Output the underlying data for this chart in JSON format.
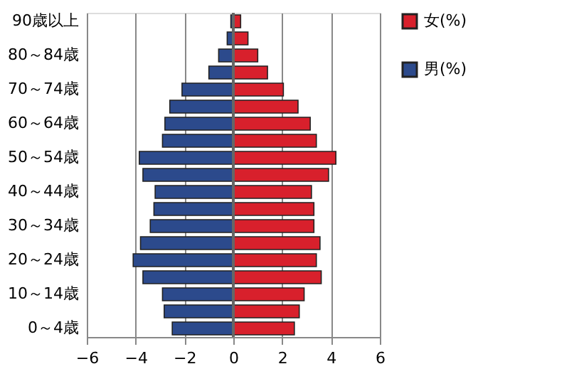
{
  "chart_data": {
    "type": "bar",
    "orientation": "horizontal",
    "categories": [
      "90歳以上",
      null,
      "80～84歳",
      null,
      "70～74歳",
      null,
      "60～64歳",
      null,
      "50～54歳",
      null,
      "40～44歳",
      null,
      "30～34歳",
      null,
      "20～24歳",
      null,
      "10～14歳",
      null,
      "0～4歳"
    ],
    "series": [
      {
        "name": "女(%)",
        "color": "#d8202c",
        "values": [
          0.3,
          0.6,
          1.0,
          1.4,
          2.05,
          2.65,
          3.15,
          3.4,
          4.2,
          3.9,
          3.2,
          3.3,
          3.3,
          3.55,
          3.4,
          3.6,
          2.9,
          2.7,
          2.5
        ]
      },
      {
        "name": "男(%)",
        "color": "#2c4a8c",
        "values": [
          -0.1,
          -0.25,
          -0.6,
          -1.0,
          -2.1,
          -2.6,
          -2.8,
          -2.9,
          -3.85,
          -3.7,
          -3.2,
          -3.25,
          -3.4,
          -3.8,
          -4.1,
          -3.7,
          -2.9,
          -2.83,
          -2.5
        ]
      }
    ],
    "xlim": [
      -6,
      6
    ],
    "xticks": [
      -6,
      -4,
      -2,
      0,
      2,
      4,
      6
    ],
    "grid": "x",
    "legend": "right",
    "stacked": true
  }
}
